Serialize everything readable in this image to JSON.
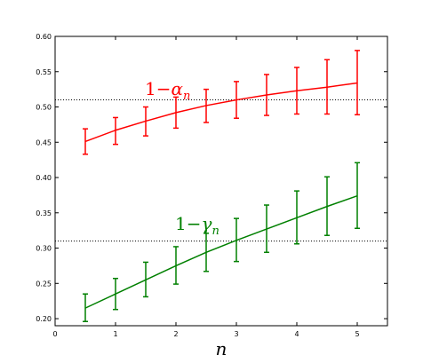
{
  "chart_data": {
    "type": "line",
    "xlabel": "n",
    "ylabel": "",
    "xlim": [
      0,
      5.5
    ],
    "ylim": [
      0.19,
      0.6
    ],
    "xticks": [
      0,
      1,
      2,
      3,
      4,
      5
    ],
    "yticks": [
      0.2,
      0.25,
      0.3,
      0.35,
      0.4,
      0.45,
      0.5,
      0.55,
      0.6
    ],
    "xtick_labels": [
      "0",
      "1",
      "2",
      "3",
      "4",
      "5"
    ],
    "ytick_labels": [
      "0.20",
      "0.25",
      "0.30",
      "0.35",
      "0.40",
      "0.45",
      "0.50",
      "0.55",
      "0.60"
    ],
    "reference_lines": [
      0.51,
      0.31
    ],
    "grid": false,
    "series": [
      {
        "name": "1−α_n",
        "color": "#ff0000",
        "x": [
          0.5,
          1.0,
          1.5,
          2.0,
          2.5,
          3.0,
          3.5,
          4.0,
          4.5,
          5.0
        ],
        "y": [
          0.451,
          0.467,
          0.48,
          0.492,
          0.502,
          0.51,
          0.517,
          0.523,
          0.528,
          0.534
        ],
        "err_low": [
          0.433,
          0.447,
          0.459,
          0.47,
          0.478,
          0.484,
          0.488,
          0.49,
          0.49,
          0.489
        ],
        "err_high": [
          0.469,
          0.485,
          0.5,
          0.514,
          0.525,
          0.536,
          0.546,
          0.556,
          0.567,
          0.58
        ],
        "label": "1−α",
        "label_sub": "n"
      },
      {
        "name": "1−γ_n",
        "color": "#008000",
        "x": [
          0.5,
          1.0,
          1.5,
          2.0,
          2.5,
          3.0,
          3.5,
          4.0,
          4.5,
          5.0
        ],
        "y": [
          0.215,
          0.235,
          0.255,
          0.275,
          0.294,
          0.311,
          0.327,
          0.343,
          0.359,
          0.374
        ],
        "err_low": [
          0.196,
          0.213,
          0.231,
          0.249,
          0.267,
          0.281,
          0.294,
          0.306,
          0.318,
          0.328
        ],
        "err_high": [
          0.235,
          0.257,
          0.28,
          0.302,
          0.321,
          0.342,
          0.361,
          0.381,
          0.401,
          0.421
        ],
        "label": "1−γ",
        "label_sub": "n"
      }
    ]
  }
}
